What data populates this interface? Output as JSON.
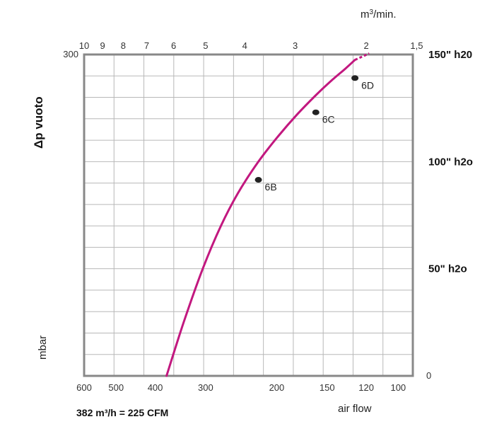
{
  "chart_data": {
    "type": "line",
    "ylabel": "Δp vuoto",
    "yunit": "mbar",
    "xlabel": "air flow",
    "top_axis_unit": "m3/min.",
    "ylim": [
      0,
      300
    ],
    "left_ticks": [
      "300"
    ],
    "right_ticks": [
      {
        "label": "150\" h20",
        "value": 300
      },
      {
        "label": "100\" h2o",
        "value": 200
      },
      {
        "label": "50\" h2o",
        "value": 100
      },
      {
        "label": "0",
        "value": 0
      }
    ],
    "bottom_ticks": [
      {
        "label": "600",
        "value": 600
      },
      {
        "label": "500",
        "value": 500
      },
      {
        "label": "400",
        "value": 400
      },
      {
        "label": "300",
        "value": 300
      },
      {
        "label": "200",
        "value": 200
      },
      {
        "label": "150",
        "value": 150
      },
      {
        "label": "120",
        "value": 120
      },
      {
        "label": "100",
        "value": 100
      }
    ],
    "top_ticks": [
      {
        "label": "10",
        "value": 10
      },
      {
        "label": "9",
        "value": 9
      },
      {
        "label": "8",
        "value": 8
      },
      {
        "label": "7",
        "value": 7
      },
      {
        "label": "6",
        "value": 6
      },
      {
        "label": "5",
        "value": 5
      },
      {
        "label": "4",
        "value": 4
      },
      {
        "label": "3",
        "value": 3
      },
      {
        "label": "2",
        "value": 2
      },
      {
        "label": "1,5",
        "value": 1.5
      }
    ],
    "series": [
      {
        "color": "#c2187f",
        "x": [
          375,
          340,
          305,
          275,
          250,
          222,
          198,
          178,
          160,
          146,
          135,
          128
        ],
        "y": [
          0,
          50,
          100,
          140,
          170,
          200,
          224,
          244,
          262,
          276,
          287,
          295
        ],
        "extension": {
          "x": [
            128,
            118
          ],
          "y": [
            295,
            301
          ]
        }
      }
    ],
    "points": [
      {
        "label": "6B",
        "x": 222,
        "y": 183
      },
      {
        "label": "6C",
        "x": 160,
        "y": 246
      },
      {
        "label": "6D",
        "x": 128,
        "y": 278
      }
    ],
    "annotation": "382 m³/h = 225 CFM",
    "grid": true
  }
}
